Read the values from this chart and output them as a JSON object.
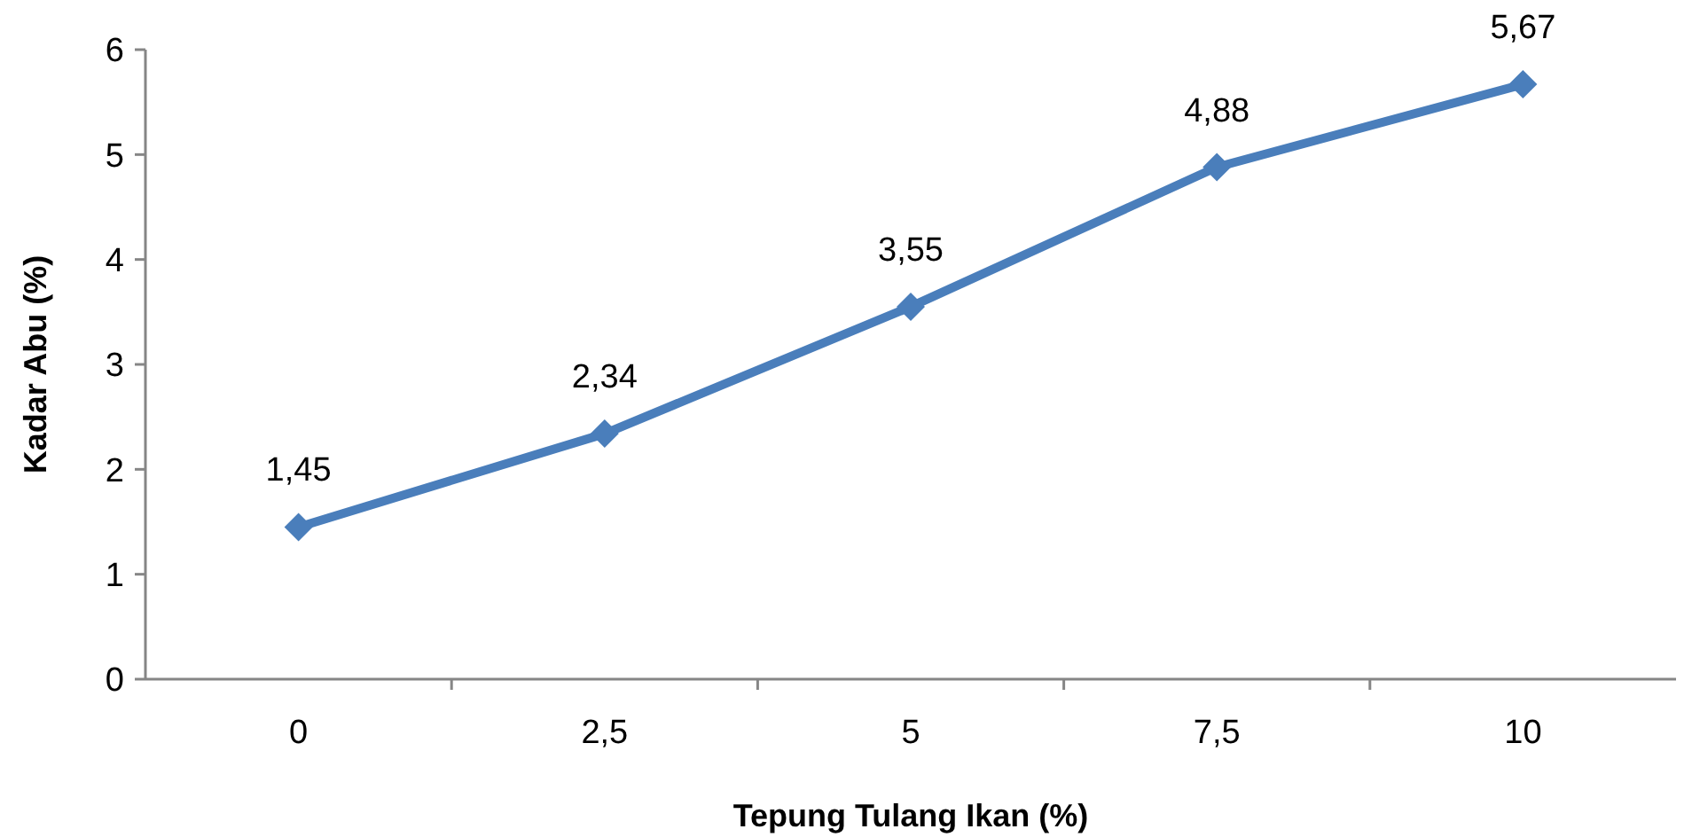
{
  "chart_data": {
    "type": "line",
    "xlabel": "Tepung Tulang Ikan (%)",
    "ylabel": "Kadar Abu (%)",
    "categories": [
      "0",
      "2,5",
      "5",
      "7,5",
      "10"
    ],
    "series": [
      {
        "color": "#4a7ebb",
        "values": [
          1.45,
          2.34,
          3.55,
          4.88,
          5.67
        ],
        "value_labels": [
          "1,45",
          "2,34",
          "3,55",
          "4,88",
          "5,67"
        ]
      }
    ],
    "ylim": [
      0,
      6
    ],
    "yticks": [
      0,
      1,
      2,
      3,
      4,
      5,
      6
    ],
    "grid": false,
    "marker": "diamond",
    "line_style": "solid"
  }
}
